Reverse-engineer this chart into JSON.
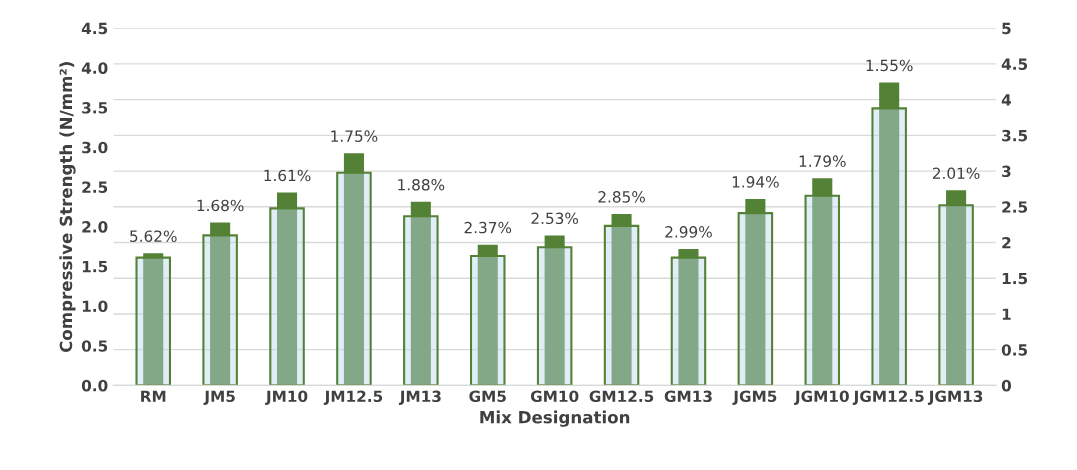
{
  "chart_data": {
    "type": "bar",
    "xlabel": "Mix Designation",
    "ylabel": "Compressive Strength (N/mm²)",
    "categories": [
      "RM",
      "JM5",
      "JM10",
      "JM12.5",
      "JM13",
      "GM5",
      "GM10",
      "GM12.5",
      "GM13",
      "JGM5",
      "JGM10",
      "JGM12.5",
      "JGM13"
    ],
    "series": [
      {
        "axis": "y2",
        "color": "#538135",
        "values": [
          1.85,
          2.28,
          2.7,
          3.25,
          2.57,
          1.97,
          2.1,
          2.4,
          1.91,
          2.61,
          2.9,
          4.24,
          2.73
        ]
      },
      {
        "axis": "y",
        "color": "#bdd7ee",
        "values": [
          1.61,
          1.89,
          2.23,
          2.68,
          2.13,
          1.63,
          1.74,
          2.01,
          1.61,
          2.17,
          2.39,
          3.49,
          2.27
        ]
      }
    ],
    "annotations": [
      "5.62%",
      "1.68%",
      "1.61%",
      "1.75%",
      "1.88%",
      "2.37%",
      "2.53%",
      "2.85%",
      "2.99%",
      "1.94%",
      "1.79%",
      "1.55%",
      "2.01%"
    ],
    "ylim": [
      0,
      4.5
    ],
    "yticks": [
      {
        "value": 0,
        "label": "0.0"
      },
      {
        "value": 0.5,
        "label": "0.5"
      },
      {
        "value": 1,
        "label": "1.0"
      },
      {
        "value": 1.5,
        "label": "1.5"
      },
      {
        "value": 2,
        "label": "2.0"
      },
      {
        "value": 2.5,
        "label": "2.5"
      },
      {
        "value": 3,
        "label": "3.0"
      },
      {
        "value": 3.5,
        "label": "3.5"
      },
      {
        "value": 4,
        "label": "4.0"
      },
      {
        "value": 4.5,
        "label": "4.5"
      }
    ],
    "y2lim": [
      0,
      5
    ],
    "y2ticks": [
      0,
      0.5,
      1,
      1.5,
      2,
      2.5,
      3,
      3.5,
      4,
      4.5,
      5
    ],
    "grid": "y",
    "legend": false
  }
}
